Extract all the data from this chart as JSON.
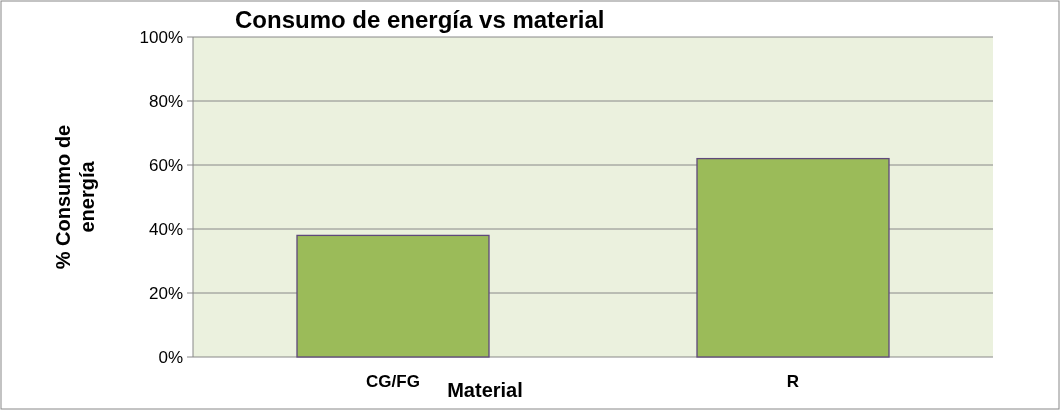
{
  "chart_data": {
    "type": "bar",
    "title": "Consumo de energía vs material",
    "xlabel": "Material",
    "ylabel": "% Consumo de energía",
    "categories": [
      "CG/FG",
      "R"
    ],
    "values": [
      38,
      62
    ],
    "color": "#9bbb59",
    "ylim": [
      0,
      100
    ],
    "yticks": [
      {
        "value": 0,
        "label": "0%"
      },
      {
        "value": 20,
        "label": "20%"
      },
      {
        "value": 40,
        "label": "40%"
      },
      {
        "value": 60,
        "label": "60%"
      },
      {
        "value": 80,
        "label": "80%"
      },
      {
        "value": 100,
        "label": "100%"
      }
    ],
    "grid": "y"
  }
}
